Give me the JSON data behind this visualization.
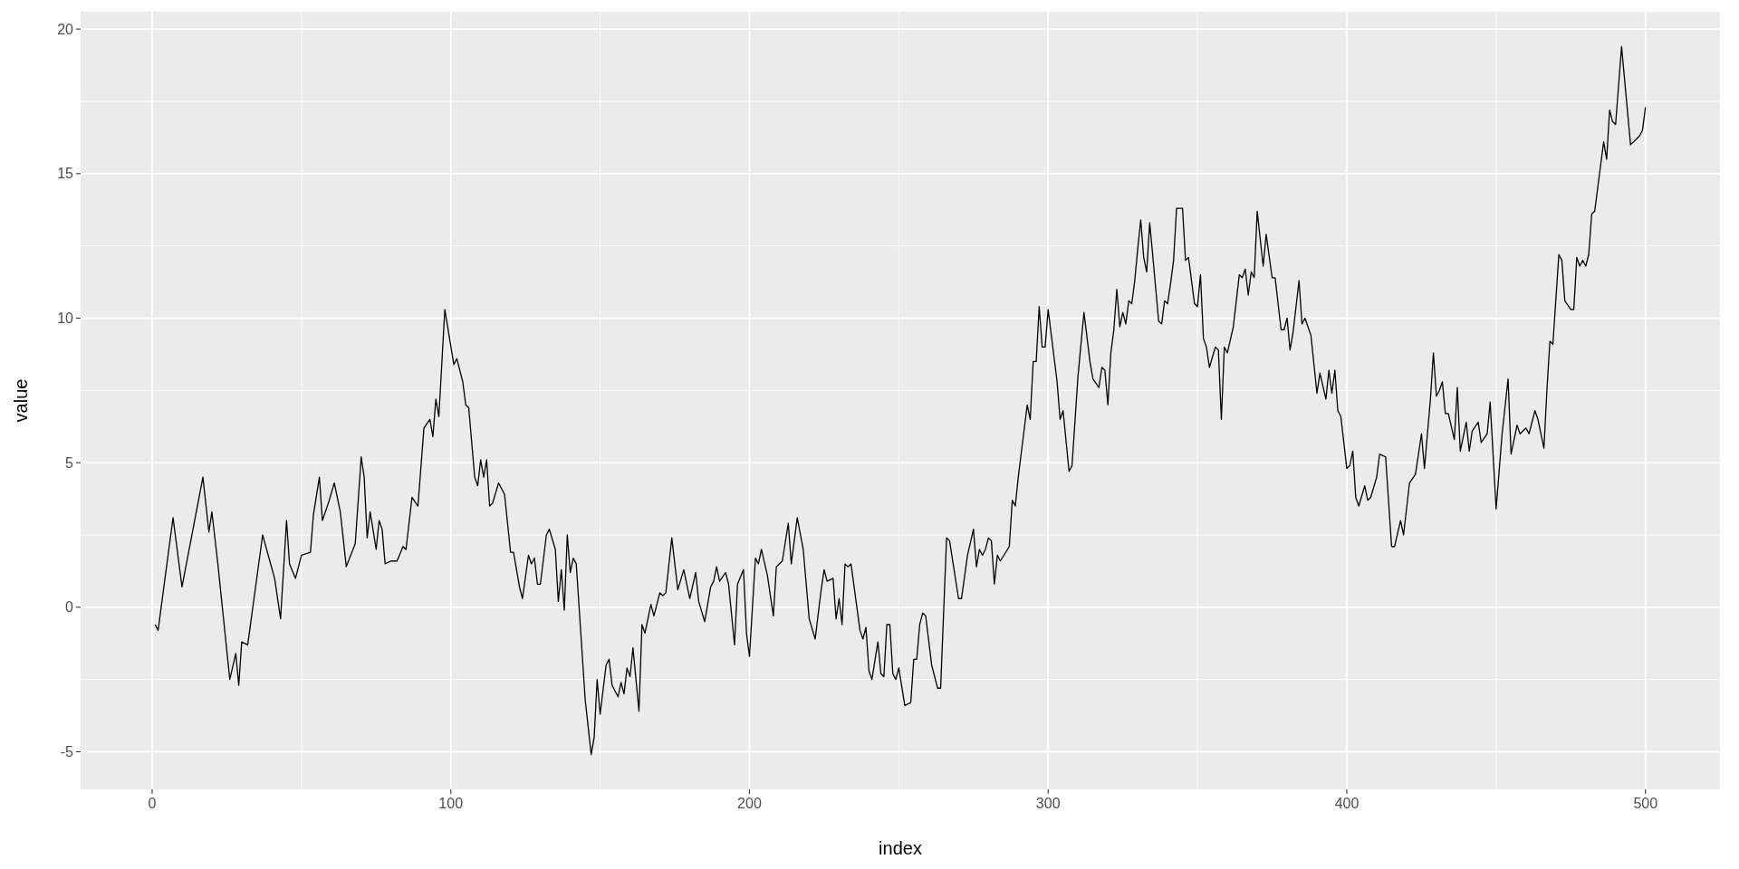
{
  "chart_data": {
    "type": "line",
    "xlabel": "index",
    "ylabel": "value",
    "color": "#000000",
    "grid": true,
    "line_style": "solid",
    "xlim": [
      -23.95,
      524.95
    ],
    "ylim": [
      -6.3,
      20.6
    ],
    "xticks": [
      0,
      {
        "value": 50,
        "label": null
      },
      100,
      {
        "value": 150,
        "label": null
      },
      200,
      {
        "value": 250,
        "label": null
      },
      300,
      {
        "value": 350,
        "label": null
      },
      400,
      {
        "value": 450,
        "label": null
      },
      500
    ],
    "yticks": [
      -5,
      {
        "value": -2.5,
        "label": null
      },
      0,
      {
        "value": 2.5,
        "label": null
      },
      5,
      {
        "value": 7.5,
        "label": null
      },
      10,
      {
        "value": 12.5,
        "label": null
      },
      15,
      {
        "value": 17.5,
        "label": null
      },
      20
    ],
    "x": [
      1,
      2,
      7,
      10,
      17,
      19,
      20,
      22,
      26,
      28,
      29,
      30,
      32,
      37,
      41,
      43,
      45,
      46,
      48,
      50,
      53,
      54,
      56,
      57,
      59,
      61,
      63,
      65,
      68,
      70,
      71,
      72,
      73,
      75,
      76,
      77,
      78,
      80,
      82,
      84,
      85,
      87,
      89,
      91,
      93,
      94,
      95,
      96,
      98,
      101,
      102,
      104,
      105,
      106,
      108,
      109,
      110,
      111,
      112,
      113,
      114,
      116,
      118,
      120,
      121,
      123,
      124,
      126,
      127,
      128,
      129,
      130,
      132,
      133,
      135,
      136,
      137,
      138,
      139,
      140,
      141,
      142,
      145,
      147,
      148,
      149,
      150,
      152,
      153,
      154,
      155,
      156,
      157,
      158,
      159,
      160,
      161,
      163,
      164,
      165,
      167,
      168,
      170,
      171,
      172,
      174,
      176,
      178,
      180,
      182,
      183,
      185,
      187,
      188,
      189,
      190,
      192,
      193,
      195,
      196,
      198,
      199,
      200,
      202,
      203,
      204,
      206,
      208,
      209,
      211,
      213,
      214,
      216,
      218,
      220,
      222,
      224,
      225,
      226,
      228,
      229,
      230,
      231,
      232,
      233,
      234,
      237,
      238,
      239,
      240,
      241,
      243,
      244,
      245,
      246,
      247,
      248,
      249,
      250,
      252,
      254,
      255,
      256,
      257,
      258,
      259,
      261,
      263,
      264,
      266,
      267,
      270,
      271,
      273,
      275,
      276,
      277,
      278,
      279,
      280,
      281,
      282,
      283,
      284,
      287,
      288,
      289,
      290,
      293,
      294,
      295,
      296,
      297,
      298,
      299,
      300,
      303,
      304,
      305,
      307,
      308,
      310,
      312,
      314,
      315,
      317,
      318,
      319,
      320,
      321,
      322,
      323,
      324,
      325,
      326,
      327,
      328,
      329,
      330,
      331,
      332,
      333,
      334,
      335,
      337,
      338,
      339,
      340,
      341,
      342,
      343,
      345,
      346,
      347,
      349,
      350,
      351,
      352,
      353,
      354,
      356,
      357,
      358,
      359,
      360,
      362,
      364,
      365,
      366,
      367,
      368,
      369,
      370,
      372,
      373,
      375,
      376,
      378,
      379,
      380,
      381,
      382,
      384,
      385,
      386,
      388,
      390,
      391,
      393,
      394,
      395,
      396,
      397,
      398,
      400,
      401,
      402,
      403,
      404,
      406,
      407,
      408,
      410,
      411,
      413,
      415,
      416,
      418,
      419,
      421,
      423,
      425,
      426,
      428,
      429,
      430,
      431,
      432,
      433,
      434,
      436,
      437,
      438,
      440,
      441,
      442,
      444,
      445,
      447,
      448,
      450,
      452,
      454,
      455,
      457,
      458,
      460,
      461,
      463,
      464,
      466,
      467,
      468,
      469,
      471,
      472,
      473,
      475,
      476,
      477,
      478,
      479,
      480,
      481,
      482,
      483,
      486,
      487,
      488,
      489,
      490,
      492,
      495,
      498,
      499,
      500
    ],
    "values": [
      -0.6,
      -0.8,
      3.1,
      0.7,
      4.5,
      2.6,
      3.3,
      1.5,
      -2.5,
      -1.6,
      -2.7,
      -1.2,
      -1.3,
      2.5,
      1.0,
      -0.4,
      3.0,
      1.5,
      1.0,
      1.8,
      1.9,
      3.2,
      4.5,
      3.0,
      3.6,
      4.3,
      3.3,
      1.4,
      2.2,
      5.2,
      4.5,
      2.4,
      3.3,
      2.0,
      3.0,
      2.7,
      1.5,
      1.6,
      1.6,
      2.1,
      2.0,
      3.8,
      3.5,
      6.2,
      6.5,
      5.9,
      7.2,
      6.6,
      10.3,
      8.4,
      8.6,
      7.8,
      7.0,
      6.9,
      4.5,
      4.2,
      5.1,
      4.5,
      5.1,
      3.5,
      3.6,
      4.3,
      3.9,
      1.9,
      1.9,
      0.7,
      0.3,
      1.8,
      1.5,
      1.7,
      0.8,
      0.8,
      2.5,
      2.7,
      2.0,
      0.2,
      1.3,
      -0.1,
      2.5,
      1.2,
      1.7,
      1.5,
      -3.2,
      -5.1,
      -4.5,
      -2.5,
      -3.7,
      -2.0,
      -1.8,
      -2.7,
      -2.9,
      -3.1,
      -2.6,
      -3.0,
      -2.1,
      -2.4,
      -1.4,
      -3.6,
      -0.6,
      -0.9,
      0.1,
      -0.3,
      0.5,
      0.4,
      0.5,
      2.4,
      0.6,
      1.3,
      0.3,
      1.2,
      0.2,
      -0.5,
      0.7,
      0.9,
      1.4,
      0.9,
      1.2,
      0.8,
      -1.3,
      0.8,
      1.3,
      -0.9,
      -1.7,
      1.7,
      1.5,
      2.0,
      1.1,
      -0.3,
      1.4,
      1.6,
      2.9,
      1.5,
      3.1,
      2.0,
      -0.4,
      -1.1,
      0.6,
      1.3,
      0.9,
      1.0,
      -0.4,
      0.3,
      -0.6,
      1.5,
      1.4,
      1.5,
      -0.8,
      -1.1,
      -0.7,
      -2.2,
      -2.5,
      -1.2,
      -2.3,
      -2.4,
      -0.6,
      -0.6,
      -2.3,
      -2.5,
      -2.1,
      -3.4,
      -3.3,
      -1.8,
      -1.8,
      -0.6,
      -0.2,
      -0.3,
      -2.0,
      -2.8,
      -2.8,
      2.4,
      2.3,
      0.3,
      0.3,
      1.8,
      2.7,
      1.4,
      2.0,
      1.8,
      2.0,
      2.4,
      2.3,
      0.8,
      1.8,
      1.6,
      2.1,
      3.7,
      3.5,
      4.5,
      7.0,
      6.5,
      8.5,
      8.5,
      10.4,
      9.0,
      9.0,
      10.3,
      7.8,
      6.5,
      6.8,
      4.7,
      4.9,
      8.0,
      10.2,
      8.5,
      7.9,
      7.6,
      8.3,
      8.2,
      7.0,
      8.8,
      9.6,
      11.0,
      9.7,
      10.2,
      9.8,
      10.6,
      10.5,
      11.3,
      12.4,
      13.4,
      12.1,
      11.6,
      13.3,
      12.2,
      9.9,
      9.8,
      10.6,
      10.5,
      11.2,
      12.0,
      13.8,
      13.8,
      12.0,
      12.1,
      10.5,
      10.4,
      11.5,
      9.3,
      9.0,
      8.3,
      9.0,
      8.9,
      6.5,
      9.0,
      8.8,
      9.7,
      11.5,
      11.4,
      11.7,
      10.8,
      11.6,
      11.4,
      13.7,
      11.8,
      12.9,
      11.4,
      11.4,
      9.6,
      9.6,
      10.0,
      8.9,
      9.5,
      11.3,
      9.8,
      10.0,
      9.4,
      7.4,
      8.1,
      7.2,
      8.2,
      7.4,
      8.2,
      6.8,
      6.6,
      4.8,
      4.9,
      5.4,
      3.8,
      3.5,
      4.2,
      3.7,
      3.8,
      4.5,
      5.3,
      5.2,
      2.1,
      2.1,
      3.0,
      2.5,
      4.3,
      4.6,
      6.0,
      4.8,
      7.2,
      8.8,
      7.3,
      7.5,
      7.8,
      6.7,
      6.7,
      5.8,
      7.6,
      5.4,
      6.4,
      5.4,
      6.1,
      6.4,
      5.7,
      6.0,
      7.1,
      3.4,
      6.0,
      7.9,
      5.3,
      6.3,
      6.0,
      6.2,
      6.0,
      6.8,
      6.5,
      5.5,
      7.5,
      9.2,
      9.1,
      12.2,
      12.0,
      10.6,
      10.3,
      10.3,
      12.1,
      11.8,
      12.0,
      11.8,
      12.2,
      13.6,
      13.7,
      16.1,
      15.5,
      17.2,
      16.8,
      16.7,
      19.4,
      16.0,
      16.3,
      16.5,
      17.3
    ]
  }
}
